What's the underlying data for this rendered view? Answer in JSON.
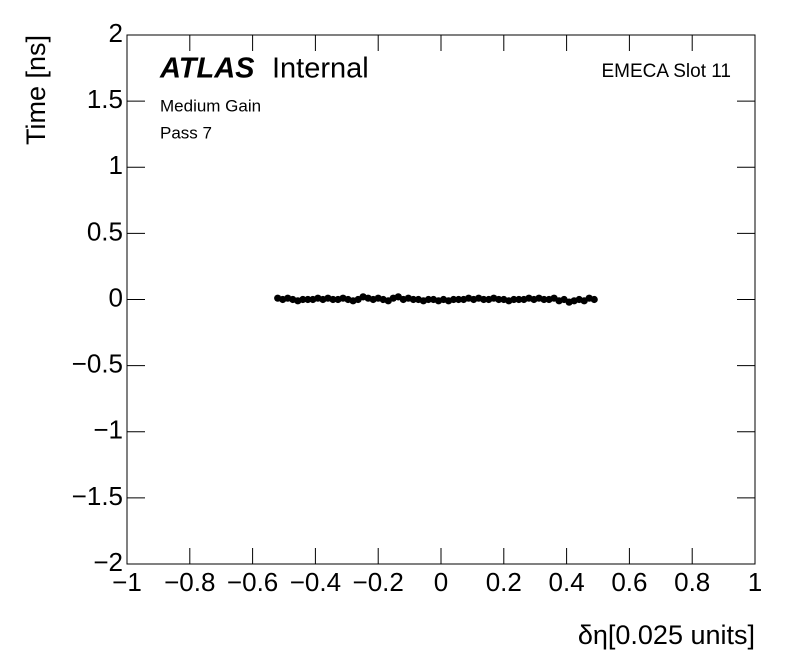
{
  "chart_data": {
    "type": "scatter",
    "atlas_label": "ATLAS",
    "atlas_status": "Internal",
    "annotations": [
      "Medium Gain",
      "Pass 7"
    ],
    "corner_label": "EMECA Slot 11",
    "x_label": "δη[0.025 units]",
    "y_label": "Time [ns]",
    "xlim": [
      -1,
      1
    ],
    "ylim": [
      -2,
      2
    ],
    "xticks": [
      {
        "value": -1,
        "label": "−1"
      },
      {
        "value": -0.8,
        "label": "−0.8"
      },
      {
        "value": -0.6,
        "label": "−0.6"
      },
      {
        "value": -0.4,
        "label": "−0.4"
      },
      {
        "value": -0.2,
        "label": "−0.2"
      },
      0,
      0.2,
      0.4,
      0.6,
      0.8,
      1
    ],
    "yticks": [
      {
        "value": -2,
        "label": "−2"
      },
      {
        "value": -1.5,
        "label": "−1.5"
      },
      {
        "value": -1,
        "label": "−1"
      },
      {
        "value": -0.5,
        "label": "−0.5"
      },
      0,
      0.5,
      1,
      1.5,
      2
    ],
    "series": [
      {
        "color": "#000000",
        "x": [
          -0.52,
          -0.504,
          -0.488,
          -0.472,
          -0.456,
          -0.44,
          -0.424,
          -0.408,
          -0.392,
          -0.376,
          -0.36,
          -0.344,
          -0.328,
          -0.312,
          -0.296,
          -0.28,
          -0.264,
          -0.248,
          -0.232,
          -0.216,
          -0.2,
          -0.184,
          -0.168,
          -0.152,
          -0.136,
          -0.12,
          -0.104,
          -0.088,
          -0.072,
          -0.056,
          -0.04,
          -0.024,
          -0.008,
          0.008,
          0.024,
          0.04,
          0.056,
          0.072,
          0.088,
          0.104,
          0.12,
          0.136,
          0.152,
          0.168,
          0.184,
          0.2,
          0.216,
          0.232,
          0.248,
          0.264,
          0.28,
          0.296,
          0.312,
          0.328,
          0.344,
          0.36,
          0.376,
          0.392,
          0.408,
          0.424,
          0.44,
          0.456,
          0.472,
          0.488
        ],
        "values": [
          0.01,
          0,
          0.01,
          0,
          -0.01,
          0,
          0,
          0,
          0.01,
          0,
          0.01,
          0,
          0,
          0.01,
          0,
          -0.01,
          0,
          0.02,
          0.01,
          0,
          0.01,
          0,
          -0.01,
          0.01,
          0.02,
          0,
          0.01,
          0,
          0,
          -0.01,
          0,
          0,
          -0.01,
          0,
          -0.01,
          0,
          0,
          0,
          0.01,
          0,
          0.01,
          0,
          0,
          0.01,
          0,
          0,
          -0.01,
          0,
          0,
          0,
          0.01,
          0,
          0.01,
          0,
          0,
          0.01,
          -0.01,
          0,
          -0.02,
          -0.01,
          0,
          -0.01,
          0.01,
          0
        ]
      }
    ]
  }
}
